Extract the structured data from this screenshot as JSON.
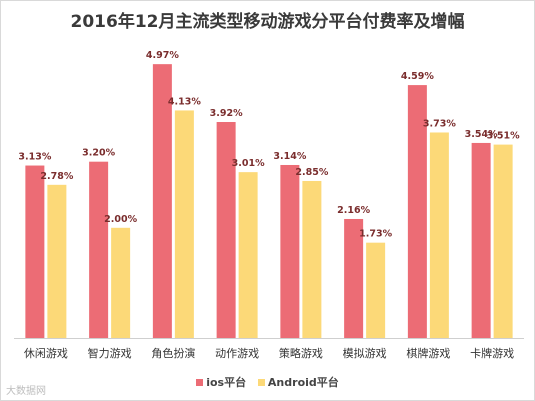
{
  "colors": {
    "ios": "#ec6c75",
    "android": "#fcd978",
    "label": "#7a2d2d",
    "axis": "#cfcfcf"
  },
  "watermark": "大数据网",
  "chart_data": {
    "type": "bar",
    "title": "2016年12月主流类型移动游戏分平台付费率及增幅",
    "xlabel": "",
    "ylabel": "",
    "ylim": [
      0,
      5.5
    ],
    "grid": false,
    "legend_position": "bottom",
    "categories": [
      "休闲游戏",
      "智力游戏",
      "角色扮演",
      "动作游戏",
      "策略游戏",
      "模拟游戏",
      "棋牌游戏",
      "卡牌游戏"
    ],
    "series": [
      {
        "name": "ios平台",
        "values": [
          3.13,
          3.2,
          4.97,
          3.92,
          3.14,
          2.16,
          4.59,
          3.54
        ],
        "labels": [
          "3.13%",
          "3.20%",
          "4.97%",
          "3.92%",
          "3.14%",
          "2.16%",
          "4.59%",
          "3.54%"
        ]
      },
      {
        "name": "Android平台",
        "values": [
          2.78,
          2.0,
          4.13,
          3.01,
          2.85,
          1.73,
          3.73,
          3.51
        ],
        "labels": [
          "2.78%",
          "2.00%",
          "4.13%",
          "3.01%",
          "2.85%",
          "1.73%",
          "3.73%",
          "3.51%"
        ]
      }
    ]
  }
}
